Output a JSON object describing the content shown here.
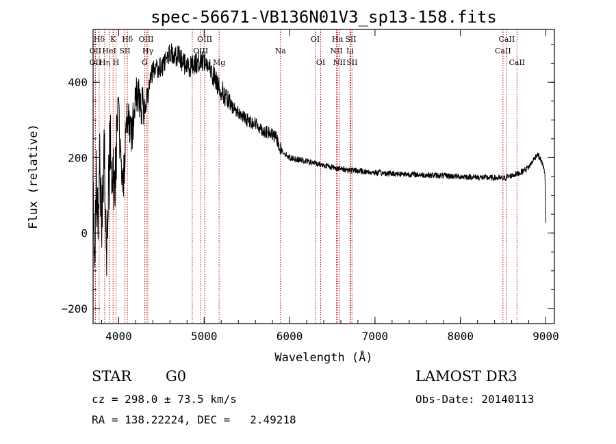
{
  "chart_data": {
    "type": "line",
    "title": "spec-56671-VB136N01V3_sp13-158.fits",
    "xlabel": "Wavelength (Å)",
    "ylabel": "Flux (relative)",
    "xlim": [
      3700,
      9100
    ],
    "ylim": [
      -240,
      540
    ],
    "xticks": [
      4000,
      5000,
      6000,
      7000,
      8000,
      9000
    ],
    "yticks": [
      -200,
      0,
      200,
      400
    ],
    "spectrum_key_points": [
      {
        "x": 3700,
        "y": 100
      },
      {
        "x": 3720,
        "y": -80
      },
      {
        "x": 3740,
        "y": 150
      },
      {
        "x": 3760,
        "y": -10
      },
      {
        "x": 3780,
        "y": 220
      },
      {
        "x": 3800,
        "y": 0
      },
      {
        "x": 3830,
        "y": 250
      },
      {
        "x": 3860,
        "y": -40
      },
      {
        "x": 3900,
        "y": 230
      },
      {
        "x": 3950,
        "y": 140
      },
      {
        "x": 4000,
        "y": 300
      },
      {
        "x": 4050,
        "y": 120
      },
      {
        "x": 4100,
        "y": 330
      },
      {
        "x": 4150,
        "y": 260
      },
      {
        "x": 4200,
        "y": 370
      },
      {
        "x": 4300,
        "y": 330
      },
      {
        "x": 4400,
        "y": 430
      },
      {
        "x": 4500,
        "y": 440
      },
      {
        "x": 4600,
        "y": 480
      },
      {
        "x": 4700,
        "y": 470
      },
      {
        "x": 4800,
        "y": 440
      },
      {
        "x": 4900,
        "y": 450
      },
      {
        "x": 5000,
        "y": 460
      },
      {
        "x": 5100,
        "y": 420
      },
      {
        "x": 5200,
        "y": 380
      },
      {
        "x": 5300,
        "y": 340
      },
      {
        "x": 5400,
        "y": 320
      },
      {
        "x": 5500,
        "y": 300
      },
      {
        "x": 5600,
        "y": 290
      },
      {
        "x": 5700,
        "y": 270
      },
      {
        "x": 5800,
        "y": 260
      },
      {
        "x": 5850,
        "y": 250
      },
      {
        "x": 5900,
        "y": 220
      },
      {
        "x": 6000,
        "y": 200
      },
      {
        "x": 6200,
        "y": 190
      },
      {
        "x": 6400,
        "y": 180
      },
      {
        "x": 6600,
        "y": 170
      },
      {
        "x": 6800,
        "y": 165
      },
      {
        "x": 7000,
        "y": 160
      },
      {
        "x": 7500,
        "y": 155
      },
      {
        "x": 8000,
        "y": 150
      },
      {
        "x": 8500,
        "y": 145
      },
      {
        "x": 8700,
        "y": 160
      },
      {
        "x": 8800,
        "y": 175
      },
      {
        "x": 8900,
        "y": 210
      },
      {
        "x": 8950,
        "y": 190
      },
      {
        "x": 8990,
        "y": 160
      },
      {
        "x": 9000,
        "y": 0
      }
    ],
    "lines": [
      {
        "label": "OII",
        "x": 3727,
        "row": 2
      },
      {
        "label": "OII",
        "x": 3727,
        "row": 3
      },
      {
        "label": "Hδ",
        "x": 3771,
        "row": 1
      },
      {
        "label": "Hη",
        "x": 3836,
        "row": 3
      },
      {
        "label": "HeI",
        "x": 3889,
        "row": 2
      },
      {
        "label": "K",
        "x": 3934,
        "row": 1
      },
      {
        "label": "H",
        "x": 3969,
        "row": 3
      },
      {
        "label": "SII",
        "x": 4072,
        "row": 2
      },
      {
        "label": "Hδ",
        "x": 4102,
        "row": 1
      },
      {
        "label": "OIII",
        "x": 4321,
        "row": 1
      },
      {
        "label": "Hγ",
        "x": 4341,
        "row": 2
      },
      {
        "label": "G",
        "x": 4305,
        "row": 3
      },
      {
        "label": "Hβ",
        "x": 4861,
        "row": 3
      },
      {
        "label": "OIII",
        "x": 4959,
        "row": 2
      },
      {
        "label": "OIII",
        "x": 5007,
        "row": 1
      },
      {
        "label": "Mg",
        "x": 5175,
        "row": 3
      },
      {
        "label": "Na",
        "x": 5893,
        "row": 2
      },
      {
        "label": "OI",
        "x": 6300,
        "row": 1
      },
      {
        "label": "OI",
        "x": 6364,
        "row": 3
      },
      {
        "label": "NII",
        "x": 6548,
        "row": 2
      },
      {
        "label": "Hα",
        "x": 6563,
        "row": 1
      },
      {
        "label": "NII",
        "x": 6583,
        "row": 3
      },
      {
        "label": "SII",
        "x": 6716,
        "row": 1
      },
      {
        "label": "Li",
        "x": 6708,
        "row": 2
      },
      {
        "label": "SII",
        "x": 6731,
        "row": 3
      },
      {
        "label": "CaII",
        "x": 8498,
        "row": 2
      },
      {
        "label": "CaII",
        "x": 8542,
        "row": 1
      },
      {
        "label": "CaII",
        "x": 8662,
        "row": 3
      }
    ]
  },
  "info": {
    "class_label": "STAR",
    "subclass": "G0",
    "survey": "LAMOST DR3",
    "cz": "cz = 298.0 ± 73.5 km/s",
    "obs_date": "Obs-Date: 20140113",
    "coords": "RA = 138.22224, DEC =   2.49218"
  },
  "colors": {
    "axis": "#000000",
    "spectrum": "#000000",
    "line_marker": "#c00000"
  }
}
